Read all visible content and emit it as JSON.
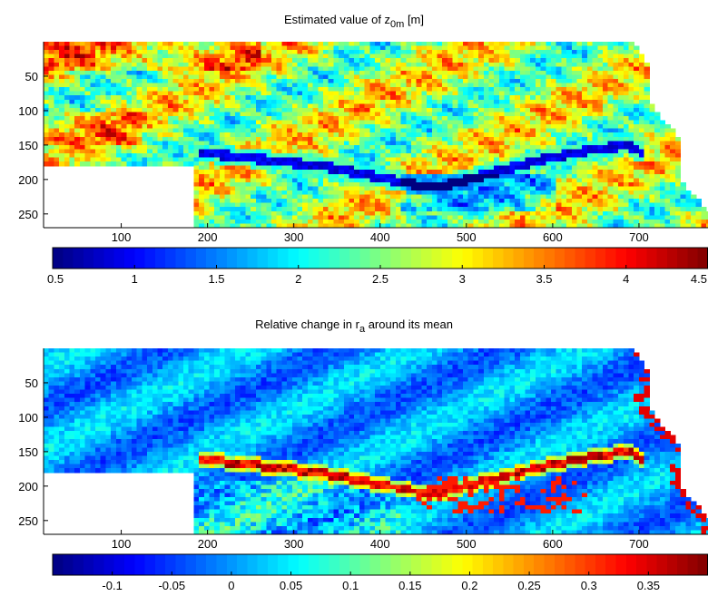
{
  "chart_data": [
    {
      "type": "heatmap",
      "title": "Estimated value of z",
      "title_subscript": "0m",
      "title_suffix": " [m]",
      "x_ticks": [
        100,
        200,
        300,
        400,
        500,
        600,
        700
      ],
      "y_ticks": [
        50,
        100,
        150,
        200,
        250
      ],
      "xlim": [
        10,
        780
      ],
      "ylim": [
        270,
        0
      ],
      "colorbar": {
        "orientation": "horizontal",
        "range": [
          0.5,
          4.5
        ],
        "ticks": [
          0.5,
          1,
          1.5,
          2,
          2.5,
          3,
          3.5,
          4,
          4.5
        ],
        "tick_labels": [
          "0.5",
          "1",
          "1.5",
          "2",
          "2.5",
          "3",
          "3.5",
          "4",
          "4.5"
        ],
        "colormap": "jet"
      },
      "masked_region": {
        "x": [
          10,
          180
        ],
        "y": [
          180,
          270
        ]
      }
    },
    {
      "type": "heatmap",
      "title": "Relative change in r",
      "title_subscript": "a",
      "title_suffix": " around its mean",
      "x_ticks": [
        100,
        200,
        300,
        400,
        500,
        600,
        700
      ],
      "y_ticks": [
        50,
        100,
        150,
        200,
        250
      ],
      "xlim": [
        10,
        780
      ],
      "ylim": [
        270,
        0
      ],
      "colorbar": {
        "orientation": "horizontal",
        "range": [
          -0.15,
          0.4
        ],
        "ticks": [
          -0.1,
          -0.05,
          0,
          0.05,
          0.1,
          0.15,
          0.2,
          0.25,
          0.3,
          0.35
        ],
        "tick_labels": [
          "-0.1",
          "-0.05",
          "0",
          "0.05",
          "0.1",
          "0.15",
          "0.2",
          "0.25",
          "0.3",
          "0.35"
        ],
        "colormap": "jet"
      },
      "masked_region": {
        "x": [
          10,
          180
        ],
        "y": [
          180,
          270
        ]
      }
    }
  ]
}
